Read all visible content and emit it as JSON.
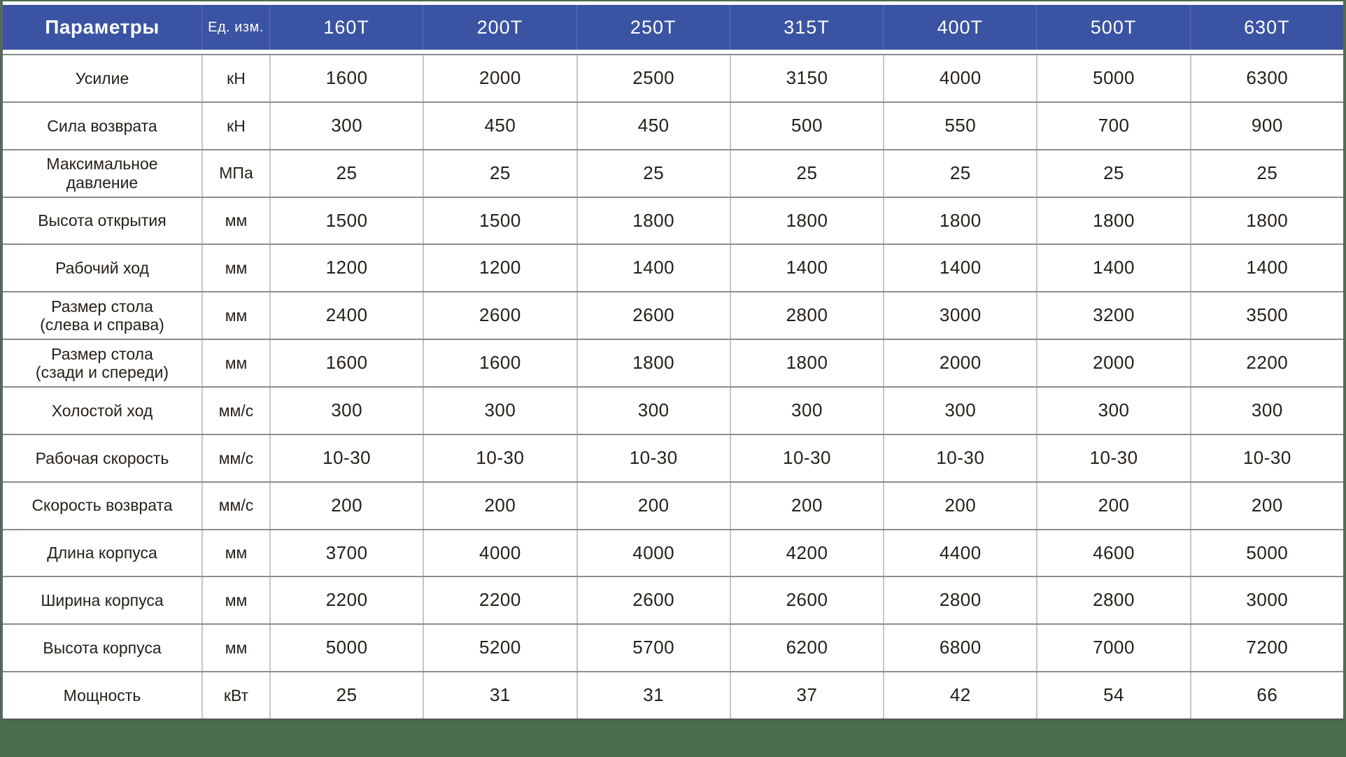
{
  "colors": {
    "header_bg": "#3A53A3",
    "header_text": "#FFFFFF",
    "body_text": "#262019",
    "background_green": "#4A6E4E",
    "grid_line_horizontal": "#8C8C8C",
    "grid_line_vertical": "#C6C6C6"
  },
  "table": {
    "header": {
      "param_label": "Параметры",
      "unit_label": "Ед. изм.",
      "models": [
        "160Т",
        "200Т",
        "250Т",
        "315Т",
        "400Т",
        "500Т",
        "630Т"
      ]
    },
    "rows": [
      {
        "param": "Усилие",
        "param_line2": "",
        "unit": "кН",
        "values": [
          "1600",
          "2000",
          "2500",
          "3150",
          "4000",
          "5000",
          "6300"
        ]
      },
      {
        "param": "Сила возврата",
        "param_line2": "",
        "unit": "кН",
        "values": [
          "300",
          "450",
          "450",
          "500",
          "550",
          "700",
          "900"
        ]
      },
      {
        "param": "Максимальное",
        "param_line2": "давление",
        "unit": "МПа",
        "values": [
          "25",
          "25",
          "25",
          "25",
          "25",
          "25",
          "25"
        ]
      },
      {
        "param": "Высота открытия",
        "param_line2": "",
        "unit": "мм",
        "values": [
          "1500",
          "1500",
          "1800",
          "1800",
          "1800",
          "1800",
          "1800"
        ]
      },
      {
        "param": "Рабочий ход",
        "param_line2": "",
        "unit": "мм",
        "values": [
          "1200",
          "1200",
          "1400",
          "1400",
          "1400",
          "1400",
          "1400"
        ]
      },
      {
        "param": "Размер стола",
        "param_line2": "(слева и справа)",
        "unit": "мм",
        "values": [
          "2400",
          "2600",
          "2600",
          "2800",
          "3000",
          "3200",
          "3500"
        ]
      },
      {
        "param": "Размер стола",
        "param_line2": "(сзади и спереди)",
        "unit": "мм",
        "values": [
          "1600",
          "1600",
          "1800",
          "1800",
          "2000",
          "2000",
          "2200"
        ]
      },
      {
        "param": "Холостой ход",
        "param_line2": "",
        "unit": "мм/с",
        "values": [
          "300",
          "300",
          "300",
          "300",
          "300",
          "300",
          "300"
        ]
      },
      {
        "param": "Рабочая скорость",
        "param_line2": "",
        "unit": "мм/с",
        "values": [
          "10-30",
          "10-30",
          "10-30",
          "10-30",
          "10-30",
          "10-30",
          "10-30"
        ]
      },
      {
        "param": "Скорость возврата",
        "param_line2": "",
        "unit": "мм/с",
        "values": [
          "200",
          "200",
          "200",
          "200",
          "200",
          "200",
          "200"
        ]
      },
      {
        "param": "Длина корпуса",
        "param_line2": "",
        "unit": "мм",
        "values": [
          "3700",
          "4000",
          "4000",
          "4200",
          "4400",
          "4600",
          "5000"
        ]
      },
      {
        "param": "Ширина корпуса",
        "param_line2": "",
        "unit": "мм",
        "values": [
          "2200",
          "2200",
          "2600",
          "2600",
          "2800",
          "2800",
          "3000"
        ]
      },
      {
        "param": "Высота корпуса",
        "param_line2": "",
        "unit": "мм",
        "values": [
          "5000",
          "5200",
          "5700",
          "6200",
          "6800",
          "7000",
          "7200"
        ]
      },
      {
        "param": "Мощность",
        "param_line2": "",
        "unit": "кВт",
        "values": [
          "25",
          "31",
          "31",
          "37",
          "42",
          "54",
          "66"
        ]
      }
    ]
  }
}
